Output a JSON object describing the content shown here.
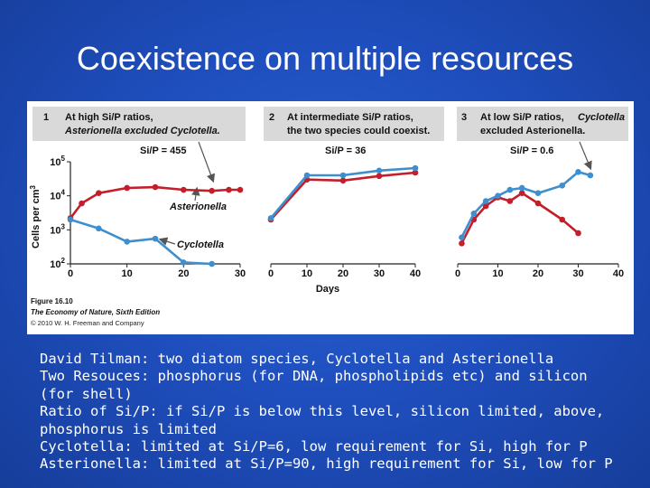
{
  "slide": {
    "title": "Coexistence on multiple resources",
    "body_lines": [
      "David Tilman: two diatom species, Cyclotella and Asterionella",
      "Two Resouces: phosphorus (for DNA, phospholipids etc) and silicon",
      "(for shell)",
      "Ratio of Si/P: if Si/P is below this level, silicon limited, above,",
      "phosphorus is limited",
      "Cyclotella: limited at Si/P=6, low requirement for Si, high for P",
      "Asterionella: limited at Si/P=90, high requirement for Si, low for P"
    ]
  },
  "figure": {
    "ylabel": "Cells per cm",
    "ylabel_sup": "3",
    "xlabel": "Days",
    "caption_line1": "Figure 16.10",
    "caption_line2": "The Economy of Nature, Sixth Edition",
    "caption_line3": "© 2010 W. H. Freeman and Company",
    "label_asterionella": "Asterionella",
    "label_cyclotella": "Cyclotella",
    "colors": {
      "asterionella": "#c41e2a",
      "cyclotella": "#3d8fcf",
      "header_bg": "#d9d9d9",
      "arrow": "#555555"
    }
  },
  "chart_data": [
    {
      "type": "line",
      "panel_number": "1",
      "header_line1": "At high Si/P ratios,",
      "header_line2": "Asterionella excluded Cyclotella.",
      "ratio_label": "Si/P = 455",
      "y_scale": "log",
      "ylim": [
        100,
        100000
      ],
      "y_tick_base": "10",
      "y_tick_exponents": [
        "2",
        "3",
        "4",
        "5"
      ],
      "xlim": [
        0,
        30
      ],
      "x_ticks": [
        "0",
        "10",
        "20",
        "30"
      ],
      "series": [
        {
          "name": "Asterionella",
          "x": [
            0,
            2,
            5,
            10,
            15,
            20,
            25,
            28,
            30
          ],
          "y": [
            2200,
            6000,
            12000,
            17000,
            18000,
            15000,
            14000,
            15000,
            15000
          ]
        },
        {
          "name": "Cyclotella",
          "x": [
            0,
            5,
            10,
            15,
            20,
            25
          ],
          "y": [
            2000,
            1100,
            450,
            550,
            110,
            100
          ]
        }
      ]
    },
    {
      "type": "line",
      "panel_number": "2",
      "header_line1": "At intermediate Si/P ratios,",
      "header_line2": "the two species could coexist.",
      "ratio_label": "Si/P = 36",
      "y_scale": "log",
      "ylim": [
        100,
        100000
      ],
      "xlim": [
        0,
        40
      ],
      "x_ticks": [
        "0",
        "10",
        "20",
        "30",
        "40"
      ],
      "series": [
        {
          "name": "Asterionella",
          "x": [
            0,
            10,
            20,
            30,
            40
          ],
          "y": [
            2000,
            30000,
            28000,
            38000,
            48000
          ]
        },
        {
          "name": "Cyclotella",
          "x": [
            0,
            10,
            20,
            30,
            40
          ],
          "y": [
            2200,
            40000,
            40000,
            55000,
            65000
          ]
        }
      ]
    },
    {
      "type": "line",
      "panel_number": "3",
      "header_line1": "At low Si/P ratios,",
      "header_line2": "excluded Asterionella.",
      "header_species": "Cyclotella",
      "ratio_label": "Si/P = 0.6",
      "y_scale": "log",
      "ylim": [
        100,
        100000
      ],
      "xlim": [
        0,
        40
      ],
      "x_ticks": [
        "0",
        "10",
        "20",
        "30",
        "40"
      ],
      "series": [
        {
          "name": "Asterionella",
          "x": [
            1,
            4,
            7,
            10,
            13,
            16,
            20,
            26,
            30
          ],
          "y": [
            400,
            2000,
            5000,
            9000,
            7000,
            12000,
            6000,
            2000,
            800
          ]
        },
        {
          "name": "Cyclotella",
          "x": [
            1,
            4,
            7,
            10,
            13,
            16,
            20,
            26,
            30,
            33
          ],
          "y": [
            600,
            3000,
            7000,
            10000,
            15000,
            17000,
            12000,
            20000,
            50000,
            40000
          ]
        }
      ]
    }
  ]
}
